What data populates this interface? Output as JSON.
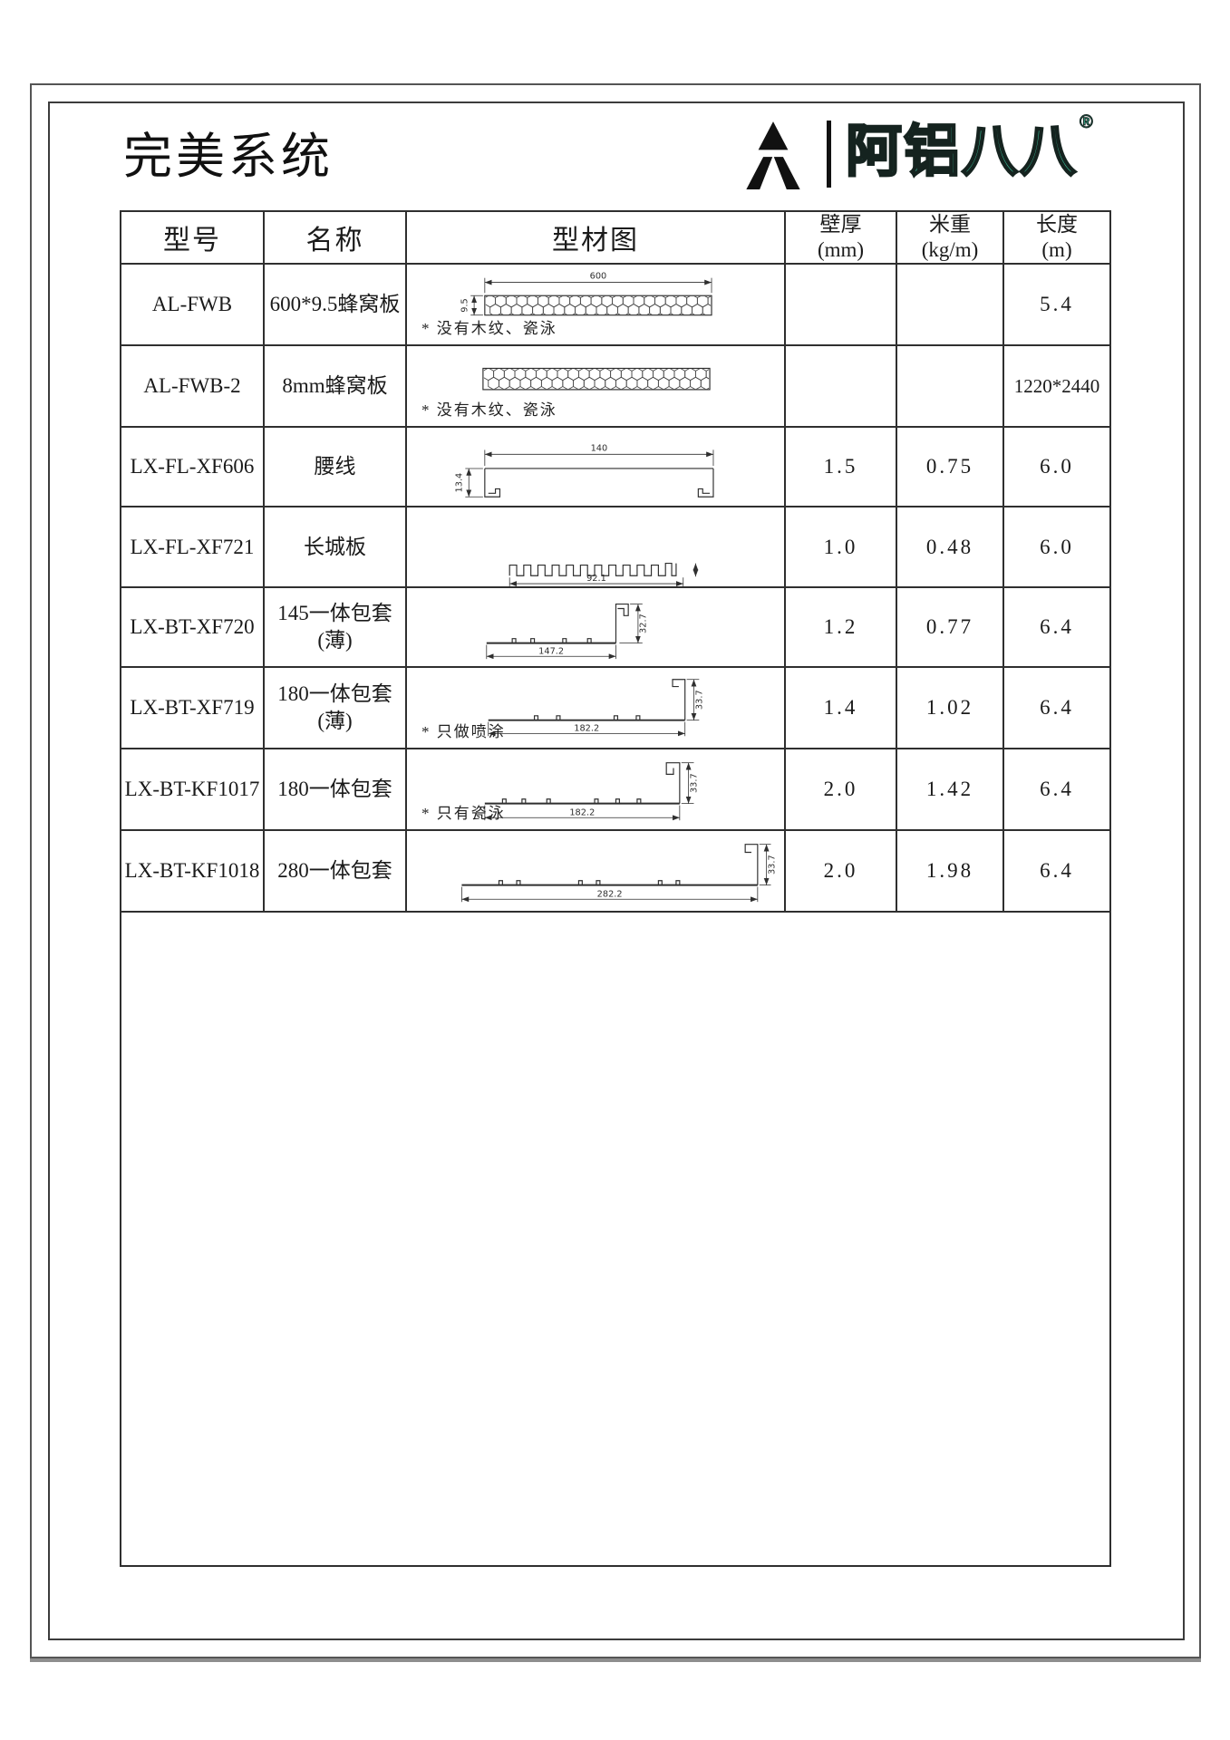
{
  "page": {
    "title": "完美系统",
    "logo": {
      "mark_icon": "triangle-a-mark",
      "brand_text": "阿铝八八",
      "registered_mark": "®",
      "brand_color": "#3ec8a1"
    }
  },
  "table": {
    "headers": {
      "model": "型号",
      "name": "名称",
      "drawing": "型材图",
      "thickness": "壁厚",
      "thickness_unit": "(mm)",
      "weight": "米重",
      "weight_unit": "(kg/m)",
      "length": "长度",
      "length_unit": "(m)"
    },
    "rows": [
      {
        "model": "AL-FWB",
        "name_line1": "600*9.5蜂窝板",
        "name_line2": "",
        "drawing_type": "honeycomb-panel",
        "note": "*  没有木纹、瓷泳",
        "thickness": "",
        "weight": "",
        "length": "5.4",
        "dims": {
          "width": "600",
          "height": "9.5"
        }
      },
      {
        "model": "AL-FWB-2",
        "name_line1": "8mm蜂窝板",
        "name_line2": "",
        "drawing_type": "honeycomb-panel",
        "note": "*  没有木纹、瓷泳",
        "thickness": "",
        "weight": "",
        "length": "1220*2440",
        "dims": {}
      },
      {
        "model": "LX-FL-XF606",
        "name_line1": "腰线",
        "name_line2": "",
        "drawing_type": "waistline-channel-profile",
        "note": "",
        "thickness": "1.5",
        "weight": "0.75",
        "length": "6.0",
        "dims": {
          "width": "140",
          "height": "13.4"
        }
      },
      {
        "model": "LX-FL-XF721",
        "name_line1": "长城板",
        "name_line2": "",
        "drawing_type": "great-wall-corrugated-profile",
        "note": "",
        "thickness": "1.0",
        "weight": "0.48",
        "length": "6.0",
        "dims": {
          "width": "92.1"
        }
      },
      {
        "model": "LX-BT-XF720",
        "name_line1": "145一体包套",
        "name_line2": "(薄)",
        "drawing_type": "wrap-sleeve-profile",
        "note": "",
        "thickness": "1.2",
        "weight": "0.77",
        "length": "6.4",
        "dims": {
          "width": "147.2",
          "height": "32.7"
        }
      },
      {
        "model": "LX-BT-XF719",
        "name_line1": "180一体包套",
        "name_line2": "(薄)",
        "drawing_type": "wrap-sleeve-profile",
        "note": "*  只做喷涂",
        "thickness": "1.4",
        "weight": "1.02",
        "length": "6.4",
        "dims": {
          "width": "182.2",
          "height": "33.7"
        }
      },
      {
        "model": "LX-BT-KF1017",
        "name_line1": "180一体包套",
        "name_line2": "",
        "drawing_type": "wrap-sleeve-profile",
        "note": "*  只有瓷泳",
        "thickness": "2.0",
        "weight": "1.42",
        "length": "6.4",
        "dims": {
          "width": "182.2",
          "height": "33.7"
        }
      },
      {
        "model": "LX-BT-KF1018",
        "name_line1": "280一体包套",
        "name_line2": "",
        "drawing_type": "wrap-sleeve-profile",
        "note": "",
        "thickness": "2.0",
        "weight": "1.98",
        "length": "6.4",
        "dims": {
          "width": "282.2",
          "height": "33.7"
        }
      }
    ]
  }
}
